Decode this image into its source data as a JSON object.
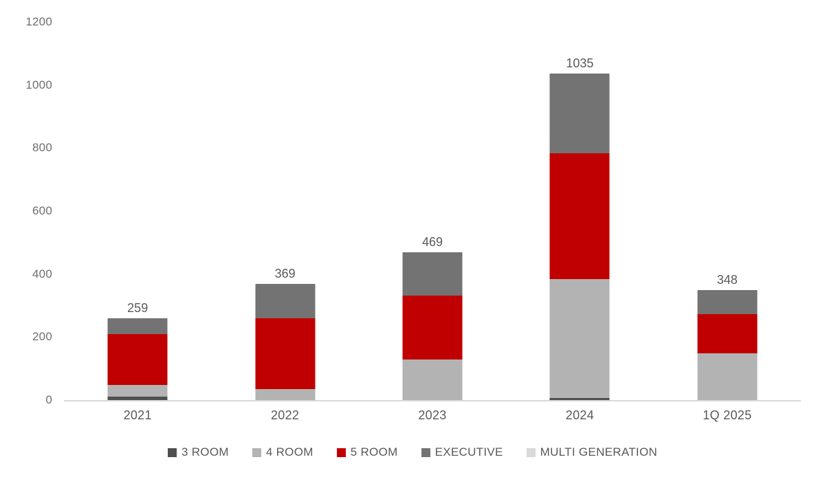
{
  "chart_data": {
    "type": "bar",
    "stacked": true,
    "grid": false,
    "legend_position": "bottom",
    "categories": [
      "2021",
      "2022",
      "2023",
      "2024",
      "1Q 2025"
    ],
    "series": [
      {
        "name": "3 ROOM",
        "color": "#4f4f4f",
        "values": [
          10,
          0,
          0,
          7,
          0
        ]
      },
      {
        "name": "4 ROOM",
        "color": "#b3b3b3",
        "values": [
          38,
          36,
          129,
          377,
          148
        ]
      },
      {
        "name": "5 ROOM",
        "color": "#c00000",
        "values": [
          162,
          224,
          202,
          398,
          124
        ]
      },
      {
        "name": "EXECUTIVE",
        "color": "#737373",
        "values": [
          49,
          109,
          138,
          253,
          76
        ]
      },
      {
        "name": "MULTI GENERATION",
        "color": "#d9d9d9",
        "values": [
          0,
          0,
          0,
          0,
          0
        ]
      }
    ],
    "totals": [
      "259",
      "369",
      "469",
      "1035",
      "348"
    ],
    "y_axis": {
      "min": 0,
      "max": 1200,
      "step": 200,
      "ticks": [
        "0",
        "200",
        "400",
        "600",
        "800",
        "1000",
        "1200"
      ]
    }
  },
  "style": {
    "axis_line_color": "#d9d9d9",
    "tick_label_color": "#6e6e6e",
    "category_label_color": "#595959",
    "data_label_color": "#595959",
    "background": "#ffffff"
  }
}
